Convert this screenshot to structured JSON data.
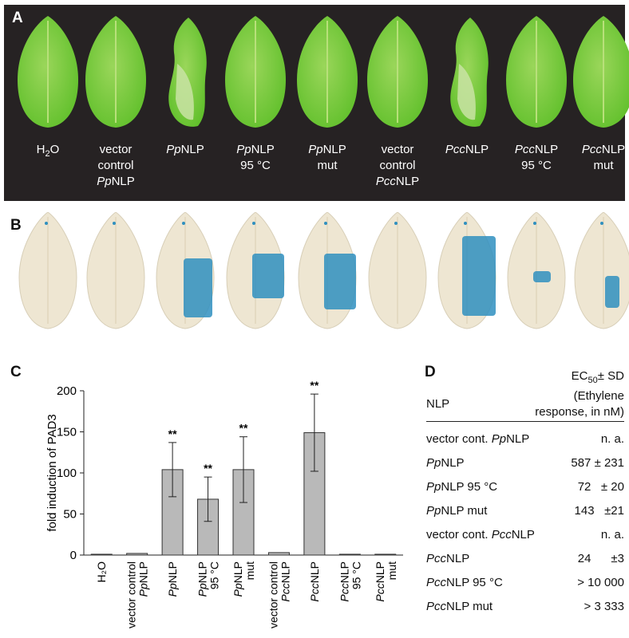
{
  "panelA": {
    "letter": "A",
    "labels": [
      [
        "H2O"
      ],
      [
        "vector",
        "control",
        "PpNLP"
      ],
      [
        "PpNLP"
      ],
      [
        "PpNLP",
        "95 °C"
      ],
      [
        "PpNLP",
        "mut"
      ],
      [
        "vector",
        "control",
        "PccNLP"
      ],
      [
        "PccNLP"
      ],
      [
        "PccNLP",
        "95 °C"
      ],
      [
        "PccNLP",
        "mut"
      ]
    ]
  },
  "panelB": {
    "letter": "B"
  },
  "panelC": {
    "letter": "C"
  },
  "panelD": {
    "letter": "D"
  },
  "chart_data": {
    "type": "bar",
    "ylabel": "fold induction of PAD3",
    "ylim": [
      0,
      200
    ],
    "yticks": [
      "0",
      "50",
      "100",
      "150",
      "200"
    ],
    "categories": [
      "H2O",
      "vector control PpNLP",
      "PpNLP",
      "PpNLP 95 °C",
      "PpNLP mut",
      "vector control PccNLP",
      "PccNLP",
      "PccNLP 95 °C",
      "PccNLP mut"
    ],
    "values": [
      1,
      2,
      104,
      68,
      104,
      3,
      149,
      1,
      1
    ],
    "error": [
      0.5,
      1,
      33,
      27,
      40,
      1,
      47,
      0.5,
      0.5
    ],
    "significance": [
      "",
      "",
      "**",
      "**",
      "**",
      "",
      "**",
      "",
      ""
    ],
    "bar_color": "#b9b9b9"
  },
  "table": {
    "col1_header": "NLP",
    "col2_header_line1": "EC",
    "col2_header_sub": "50",
    "col2_header_tail": "± SD",
    "col2_header_line2": "(Ethylene",
    "col2_header_line3": "response, in nM)",
    "rows": [
      {
        "name": "vector cont. PpNLP",
        "value": "n. a."
      },
      {
        "name": "PpNLP",
        "value": "587 ± 231"
      },
      {
        "name": "PpNLP 95 °C",
        "value": "72   ± 20"
      },
      {
        "name": "PpNLP mut",
        "value": "143   ±21"
      },
      {
        "name": "vector cont. PccNLP",
        "value": "n. a."
      },
      {
        "name": "PccNLP",
        "value": "24      ±3"
      },
      {
        "name": "PccNLP 95 °C",
        "value": "> 10 000"
      },
      {
        "name": "PccNLP mut",
        "value": "> 3 333"
      }
    ]
  },
  "colors": {
    "leaf_healthy": "#5fbf2a",
    "leaf_light": "#9ad65a",
    "stain_blue": "#2f8fbf",
    "cleared_leaf": "#eee6d2"
  }
}
